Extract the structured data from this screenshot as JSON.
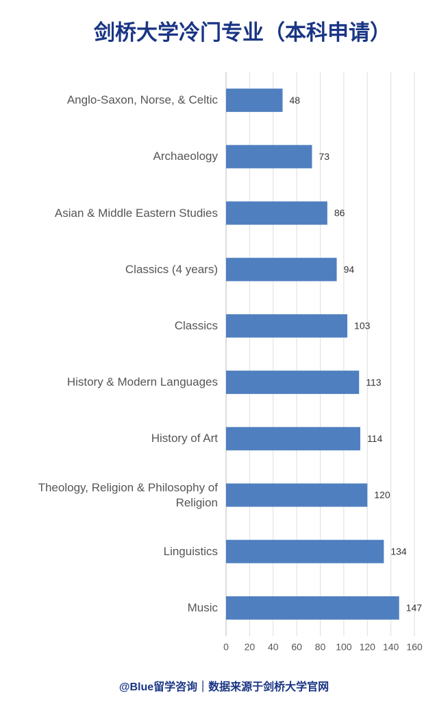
{
  "chart_data": {
    "type": "hbar",
    "title": "剑桥大学冷门专业（本科申请）",
    "categories": [
      "Anglo-Saxon, Norse, & Celtic",
      "Archaeology",
      "Asian & Middle Eastern Studies",
      "Classics (4 years)",
      "Classics",
      "History & Modern Languages",
      "History of Art",
      "Theology, Religion & Philosophy of Religion",
      "Linguistics",
      "Music"
    ],
    "values": [
      48,
      73,
      86,
      94,
      103,
      113,
      114,
      120,
      134,
      147
    ],
    "color": "#4f7fbf",
    "xlim": [
      0,
      160
    ],
    "xticks": [
      0,
      20,
      40,
      60,
      80,
      100,
      120,
      140,
      160
    ],
    "grid": true,
    "footer": "@Blue留学咨询｜数据来源于剑桥大学官网"
  }
}
